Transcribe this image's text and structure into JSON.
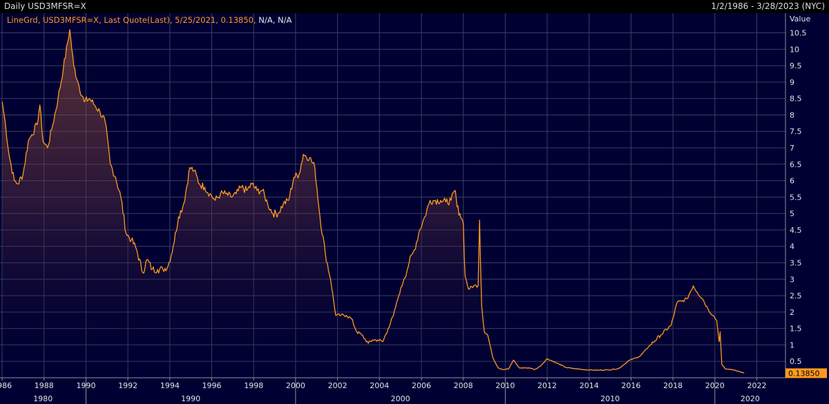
{
  "header": {
    "title": "Daily USD3MFSR=X",
    "range": "1/2/1986 - 3/28/2023 (NYC)"
  },
  "legend": {
    "text": "LineGrd, USD3MFSR=X, Last Quote(Last), 5/25/2021, 0.13850,",
    "suffix": " N/A, N/A",
    "color": "#ff9a1f"
  },
  "colors": {
    "background": "#000033",
    "grid": "#3a4060",
    "line": "#ff9a1f",
    "last_value_bg": "#ff9a1f"
  },
  "chart_data": {
    "type": "area",
    "series": [
      {
        "name": "USD3MFSR=X",
        "points": [
          [
            "1986-01-02",
            8.4
          ],
          [
            "1986-03-01",
            7.7
          ],
          [
            "1986-05-01",
            6.8
          ],
          [
            "1986-08-01",
            6.0
          ],
          [
            "1986-10-01",
            5.9
          ],
          [
            "1987-01-01",
            6.2
          ],
          [
            "1987-04-01",
            7.2
          ],
          [
            "1987-06-01",
            7.4
          ],
          [
            "1987-09-01",
            7.7
          ],
          [
            "1987-10-20",
            8.3
          ],
          [
            "1987-12-15",
            7.2
          ],
          [
            "1988-03-01",
            7.0
          ],
          [
            "1988-06-01",
            7.7
          ],
          [
            "1988-09-01",
            8.5
          ],
          [
            "1988-12-01",
            9.4
          ],
          [
            "1989-03-24",
            10.6
          ],
          [
            "1989-06-01",
            9.5
          ],
          [
            "1989-09-01",
            8.9
          ],
          [
            "1989-12-01",
            8.4
          ],
          [
            "1990-03-01",
            8.5
          ],
          [
            "1990-06-01",
            8.3
          ],
          [
            "1990-09-01",
            8.1
          ],
          [
            "1990-12-01",
            7.8
          ],
          [
            "1991-03-01",
            6.5
          ],
          [
            "1991-06-01",
            6.1
          ],
          [
            "1991-09-01",
            5.5
          ],
          [
            "1991-12-01",
            4.4
          ],
          [
            "1992-03-01",
            4.2
          ],
          [
            "1992-06-01",
            3.9
          ],
          [
            "1992-09-15",
            3.2
          ],
          [
            "1992-12-01",
            3.6
          ],
          [
            "1993-03-01",
            3.3
          ],
          [
            "1993-06-01",
            3.3
          ],
          [
            "1993-09-01",
            3.3
          ],
          [
            "1993-12-01",
            3.4
          ],
          [
            "1994-03-01",
            4.0
          ],
          [
            "1994-06-01",
            4.9
          ],
          [
            "1994-09-01",
            5.3
          ],
          [
            "1994-12-15",
            6.4
          ],
          [
            "1995-03-01",
            6.3
          ],
          [
            "1995-06-01",
            5.9
          ],
          [
            "1995-09-01",
            5.8
          ],
          [
            "1995-12-01",
            5.6
          ],
          [
            "1996-03-01",
            5.4
          ],
          [
            "1996-06-01",
            5.6
          ],
          [
            "1996-09-01",
            5.6
          ],
          [
            "1996-12-01",
            5.5
          ],
          [
            "1997-03-01",
            5.6
          ],
          [
            "1997-06-01",
            5.8
          ],
          [
            "1997-09-01",
            5.7
          ],
          [
            "1997-12-01",
            5.9
          ],
          [
            "1998-03-01",
            5.7
          ],
          [
            "1998-06-01",
            5.7
          ],
          [
            "1998-09-01",
            5.3
          ],
          [
            "1998-12-01",
            5.0
          ],
          [
            "1999-03-01",
            5.0
          ],
          [
            "1999-06-01",
            5.3
          ],
          [
            "1999-09-01",
            5.4
          ],
          [
            "1999-12-01",
            6.1
          ],
          [
            "2000-03-01",
            6.2
          ],
          [
            "2000-05-15",
            6.8
          ],
          [
            "2000-09-01",
            6.7
          ],
          [
            "2000-12-01",
            6.4
          ],
          [
            "2001-03-01",
            4.9
          ],
          [
            "2001-06-01",
            3.8
          ],
          [
            "2001-09-01",
            3.0
          ],
          [
            "2001-12-01",
            1.9
          ],
          [
            "2002-03-01",
            1.9
          ],
          [
            "2002-06-01",
            1.9
          ],
          [
            "2002-09-01",
            1.8
          ],
          [
            "2002-12-01",
            1.4
          ],
          [
            "2003-03-01",
            1.3
          ],
          [
            "2003-06-20",
            1.05
          ],
          [
            "2003-09-01",
            1.15
          ],
          [
            "2003-12-01",
            1.15
          ],
          [
            "2004-03-01",
            1.1
          ],
          [
            "2004-06-01",
            1.5
          ],
          [
            "2004-09-01",
            1.9
          ],
          [
            "2004-12-01",
            2.5
          ],
          [
            "2005-03-01",
            3.0
          ],
          [
            "2005-06-01",
            3.5
          ],
          [
            "2005-09-01",
            3.9
          ],
          [
            "2005-12-01",
            4.5
          ],
          [
            "2006-03-01",
            4.9
          ],
          [
            "2006-06-01",
            5.4
          ],
          [
            "2006-09-01",
            5.4
          ],
          [
            "2006-12-01",
            5.4
          ],
          [
            "2007-03-01",
            5.35
          ],
          [
            "2007-06-01",
            5.4
          ],
          [
            "2007-08-15",
            5.7
          ],
          [
            "2007-09-15",
            5.2
          ],
          [
            "2007-11-01",
            5.0
          ],
          [
            "2008-01-01",
            4.7
          ],
          [
            "2008-02-01",
            3.1
          ],
          [
            "2008-04-01",
            2.7
          ],
          [
            "2008-07-01",
            2.8
          ],
          [
            "2008-09-15",
            2.8
          ],
          [
            "2008-10-10",
            4.8
          ],
          [
            "2008-11-15",
            2.2
          ],
          [
            "2009-01-01",
            1.4
          ],
          [
            "2009-03-01",
            1.3
          ],
          [
            "2009-06-01",
            0.6
          ],
          [
            "2009-09-01",
            0.3
          ],
          [
            "2009-12-01",
            0.25
          ],
          [
            "2010-03-01",
            0.27
          ],
          [
            "2010-05-25",
            0.54
          ],
          [
            "2010-09-01",
            0.3
          ],
          [
            "2010-12-01",
            0.3
          ],
          [
            "2011-03-01",
            0.3
          ],
          [
            "2011-06-01",
            0.25
          ],
          [
            "2011-09-01",
            0.35
          ],
          [
            "2011-12-31",
            0.58
          ],
          [
            "2012-06-01",
            0.46
          ],
          [
            "2012-12-01",
            0.31
          ],
          [
            "2013-06-01",
            0.27
          ],
          [
            "2013-12-01",
            0.24
          ],
          [
            "2014-06-01",
            0.23
          ],
          [
            "2014-12-01",
            0.24
          ],
          [
            "2015-06-01",
            0.28
          ],
          [
            "2015-12-01",
            0.53
          ],
          [
            "2016-06-01",
            0.65
          ],
          [
            "2016-12-01",
            1.0
          ],
          [
            "2017-06-01",
            1.3
          ],
          [
            "2017-12-01",
            1.6
          ],
          [
            "2018-03-15",
            2.3
          ],
          [
            "2018-06-01",
            2.33
          ],
          [
            "2018-09-01",
            2.4
          ],
          [
            "2018-12-20",
            2.8
          ],
          [
            "2019-03-01",
            2.6
          ],
          [
            "2019-06-01",
            2.4
          ],
          [
            "2019-09-01",
            2.1
          ],
          [
            "2019-12-01",
            1.9
          ],
          [
            "2020-02-01",
            1.75
          ],
          [
            "2020-03-15",
            1.1
          ],
          [
            "2020-04-01",
            1.4
          ],
          [
            "2020-05-01",
            0.4
          ],
          [
            "2020-07-01",
            0.27
          ],
          [
            "2020-12-01",
            0.24
          ],
          [
            "2021-03-01",
            0.19
          ],
          [
            "2021-05-25",
            0.1385
          ]
        ]
      }
    ],
    "x_range": [
      "1985-11-25",
      "2023-05-15"
    ],
    "y_range": [
      0,
      11.1
    ],
    "y_ticks": [
      0.5,
      1,
      1.5,
      2,
      2.5,
      3,
      3.5,
      4,
      4.5,
      5,
      5.5,
      6,
      6.5,
      7,
      7.5,
      8,
      8.5,
      9,
      9.5,
      10,
      10.5
    ],
    "y_tick_labels": [
      "0.5",
      "1",
      "1.5",
      "2",
      "2.5",
      "3",
      "3.5",
      "4",
      "4.5",
      "5",
      "5.5",
      "6",
      "6.5",
      "7",
      "7.5",
      "8",
      "8.5",
      "9",
      "9.5",
      "10",
      "10.5"
    ],
    "x_ticks": [
      "1986",
      "1988",
      "1990",
      "1992",
      "1994",
      "1996",
      "1998",
      "2000",
      "2002",
      "2004",
      "2006",
      "2008",
      "2010",
      "2012",
      "2014",
      "2016",
      "2018",
      "2020",
      "2022"
    ],
    "decades": [
      "1980",
      "1990",
      "2000",
      "2010",
      "2020"
    ],
    "y_axis_title": "Value",
    "last_value": 0.1385,
    "last_value_label": "0.13850",
    "grid": true,
    "legend_position": "top-left"
  }
}
